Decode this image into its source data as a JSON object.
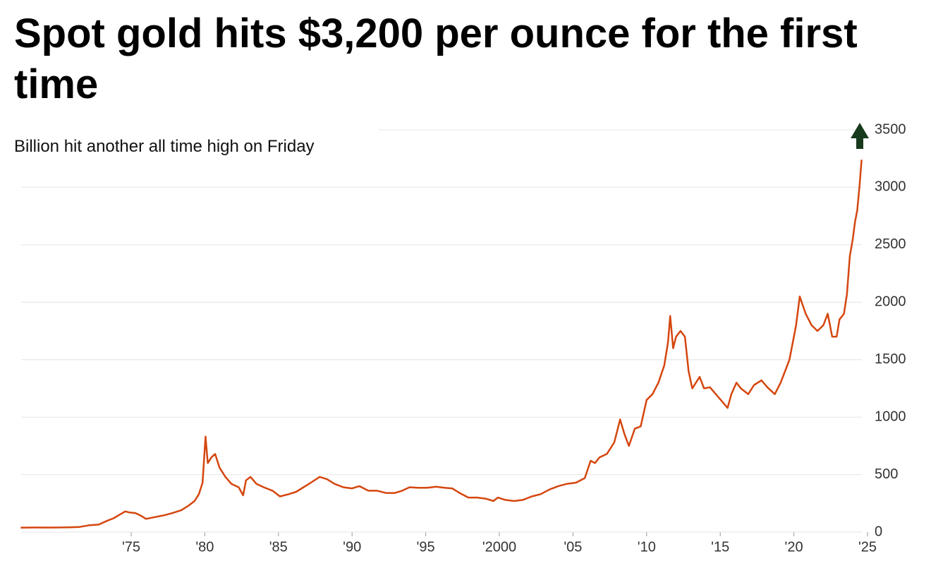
{
  "chart_data": {
    "type": "line",
    "title": "Spot gold hits $3,200 per ounce for the first time",
    "subtitle": "Billion hit another all time high on Friday",
    "x": [
      1967.5,
      1968.5,
      1969.3,
      1970.0,
      1970.8,
      1971.5,
      1972.2,
      1972.8,
      1973.4,
      1973.8,
      1974.2,
      1974.6,
      1974.9,
      1975.3,
      1975.7,
      1976.0,
      1976.6,
      1977.2,
      1977.8,
      1978.4,
      1978.9,
      1979.3,
      1979.6,
      1979.85,
      1980.05,
      1980.2,
      1980.45,
      1980.7,
      1981.0,
      1981.4,
      1981.8,
      1982.3,
      1982.6,
      1982.8,
      1983.1,
      1983.5,
      1984.0,
      1984.6,
      1985.1,
      1985.7,
      1986.2,
      1986.7,
      1987.2,
      1987.8,
      1988.3,
      1988.8,
      1989.4,
      1990.0,
      1990.5,
      1991.1,
      1991.7,
      1992.3,
      1992.9,
      1993.4,
      1993.9,
      1994.5,
      1995.1,
      1995.7,
      1996.3,
      1996.8,
      1997.3,
      1997.9,
      1998.5,
      1999.1,
      1999.6,
      1999.9,
      2000.4,
      2001.0,
      2001.6,
      2002.2,
      2002.8,
      2003.4,
      2004.0,
      2004.6,
      2005.2,
      2005.8,
      2006.2,
      2006.5,
      2006.8,
      2007.3,
      2007.8,
      2008.2,
      2008.5,
      2008.8,
      2009.2,
      2009.6,
      2010.0,
      2010.4,
      2010.8,
      2011.2,
      2011.45,
      2011.6,
      2011.8,
      2012.0,
      2012.3,
      2012.6,
      2012.85,
      2013.1,
      2013.35,
      2013.6,
      2013.9,
      2014.3,
      2014.7,
      2015.1,
      2015.5,
      2015.75,
      2016.1,
      2016.4,
      2016.9,
      2017.3,
      2017.8,
      2018.2,
      2018.7,
      2019.1,
      2019.4,
      2019.7,
      2020.0,
      2020.15,
      2020.4,
      2020.8,
      2021.2,
      2021.6,
      2022.0,
      2022.3,
      2022.6,
      2022.9,
      2023.1,
      2023.4,
      2023.6,
      2023.8,
      2024.0,
      2024.15,
      2024.3,
      2024.45,
      2024.6
    ],
    "values": [
      38,
      40,
      39,
      40,
      42,
      45,
      60,
      65,
      100,
      120,
      150,
      180,
      170,
      165,
      140,
      115,
      130,
      145,
      165,
      190,
      230,
      270,
      330,
      430,
      830,
      600,
      650,
      680,
      560,
      480,
      420,
      390,
      320,
      450,
      480,
      420,
      390,
      360,
      310,
      330,
      350,
      390,
      430,
      480,
      460,
      420,
      390,
      380,
      400,
      360,
      360,
      340,
      340,
      360,
      390,
      385,
      385,
      395,
      385,
      380,
      340,
      300,
      300,
      290,
      270,
      300,
      280,
      270,
      280,
      310,
      330,
      370,
      400,
      420,
      430,
      470,
      620,
      600,
      650,
      680,
      780,
      980,
      850,
      750,
      900,
      920,
      1150,
      1200,
      1300,
      1450,
      1650,
      1880,
      1600,
      1700,
      1750,
      1700,
      1400,
      1250,
      1300,
      1350,
      1250,
      1260,
      1200,
      1140,
      1080,
      1200,
      1300,
      1250,
      1200,
      1280,
      1320,
      1260,
      1200,
      1300,
      1400,
      1500,
      1700,
      1800,
      2050,
      1900,
      1800,
      1750,
      1800,
      1900,
      1700,
      1700,
      1850,
      1900,
      2070,
      2400,
      2550,
      2700,
      2800,
      3000,
      3240
    ],
    "xlim": [
      1967.53,
      2025
    ],
    "xticks": [
      {
        "value": 1975,
        "label": "'75"
      },
      {
        "value": 1980,
        "label": "'80"
      },
      {
        "value": 1985,
        "label": "'85"
      },
      {
        "value": 1990,
        "label": "'90"
      },
      {
        "value": 1995,
        "label": "'95"
      },
      {
        "value": 2000,
        "label": "'2000"
      },
      {
        "value": 2005,
        "label": "'05"
      },
      {
        "value": 2010,
        "label": "'10"
      },
      {
        "value": 2015,
        "label": "'15"
      },
      {
        "value": 2020,
        "label": "'20"
      },
      {
        "value": 2025,
        "label": "'25"
      }
    ],
    "ylim": [
      0,
      3500
    ],
    "yticks": [
      0,
      500,
      1000,
      1500,
      2000,
      2500,
      3000,
      3500
    ],
    "color": "#d5460f",
    "grid": true
  }
}
